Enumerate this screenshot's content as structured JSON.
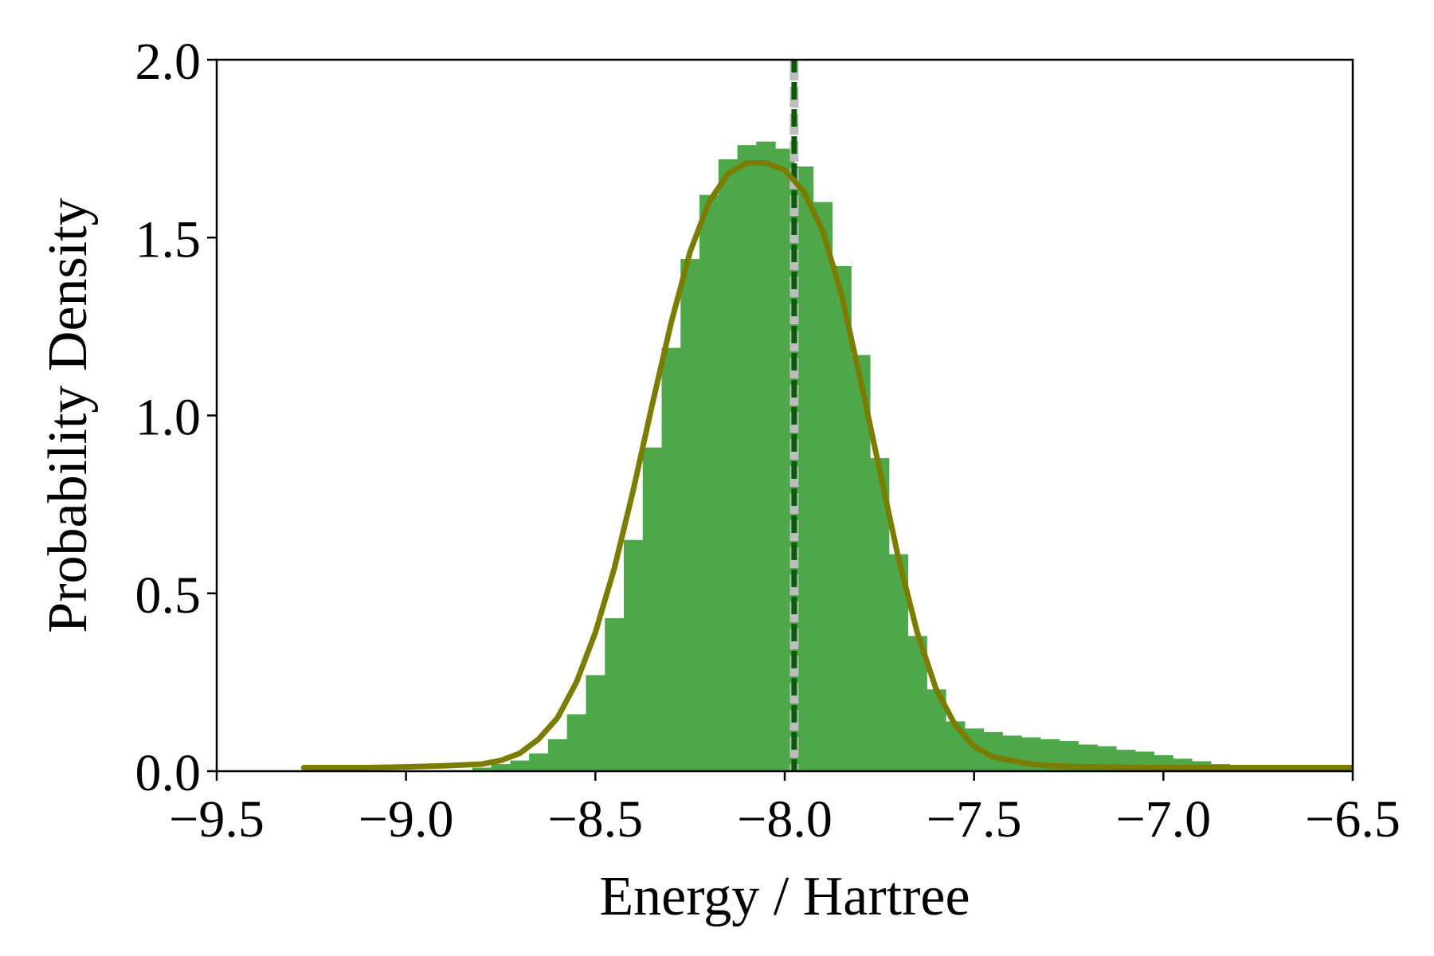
{
  "chart_data": {
    "type": "bar",
    "title": "",
    "xlabel": "Energy / Hartree",
    "ylabel": "Probability Density",
    "xlim": [
      -9.5,
      -6.5
    ],
    "ylim": [
      0.0,
      2.0
    ],
    "xticks": [
      -9.5,
      -9.0,
      -8.5,
      -8.0,
      -7.5,
      -7.0,
      -6.5
    ],
    "xtick_labels": [
      "−9.5",
      "−9.0",
      "−8.5",
      "−8.0",
      "−7.5",
      "−7.0",
      "−6.5"
    ],
    "yticks": [
      0.0,
      0.5,
      1.0,
      1.5,
      2.0
    ],
    "ytick_labels": [
      "0.0",
      "0.5",
      "1.0",
      "1.5",
      "2.0"
    ],
    "grid": false,
    "series": [
      {
        "kind": "histogram",
        "color": "#4ea84a",
        "x": [
          -8.8,
          -8.75,
          -8.7,
          -8.65,
          -8.6,
          -8.55,
          -8.5,
          -8.45,
          -8.4,
          -8.35,
          -8.3,
          -8.25,
          -8.2,
          -8.15,
          -8.1,
          -8.05,
          -8.0,
          -7.95,
          -7.9,
          -7.85,
          -7.8,
          -7.75,
          -7.7,
          -7.65,
          -7.6,
          -7.55,
          -7.5,
          -7.45,
          -7.4,
          -7.35,
          -7.3,
          -7.25,
          -7.2,
          -7.15,
          -7.1,
          -7.05,
          -7.0,
          -6.95,
          -6.9,
          -6.85,
          -6.8,
          -6.75,
          -6.7,
          -6.65,
          -6.6,
          -6.55,
          -6.5
        ],
        "values": [
          0.01,
          0.02,
          0.03,
          0.05,
          0.09,
          0.16,
          0.27,
          0.43,
          0.65,
          0.91,
          1.19,
          1.44,
          1.62,
          1.72,
          1.76,
          1.77,
          1.75,
          1.7,
          1.6,
          1.42,
          1.17,
          0.88,
          0.61,
          0.38,
          0.23,
          0.14,
          0.12,
          0.11,
          0.1,
          0.095,
          0.09,
          0.085,
          0.075,
          0.07,
          0.06,
          0.055,
          0.045,
          0.035,
          0.028,
          0.02,
          0.014,
          0.009,
          0.006,
          0.004,
          0.003,
          0.002,
          0.001
        ]
      },
      {
        "kind": "curve",
        "color": "#7a7d00",
        "x": [
          -9.27,
          -9.2,
          -9.1,
          -9.0,
          -8.9,
          -8.8,
          -8.75,
          -8.7,
          -8.65,
          -8.6,
          -8.55,
          -8.5,
          -8.45,
          -8.4,
          -8.35,
          -8.3,
          -8.25,
          -8.2,
          -8.15,
          -8.1,
          -8.05,
          -8.0,
          -7.95,
          -7.9,
          -7.85,
          -7.8,
          -7.75,
          -7.7,
          -7.65,
          -7.6,
          -7.55,
          -7.5,
          -7.45,
          -7.4,
          -7.35,
          -7.3,
          -7.2,
          -7.1,
          -7.0,
          -6.9,
          -6.8,
          -6.7,
          -6.6,
          -6.5
        ],
        "values": [
          0.01,
          0.01,
          0.01,
          0.012,
          0.015,
          0.02,
          0.03,
          0.05,
          0.09,
          0.15,
          0.25,
          0.39,
          0.57,
          0.79,
          1.03,
          1.26,
          1.46,
          1.6,
          1.68,
          1.71,
          1.71,
          1.69,
          1.63,
          1.52,
          1.34,
          1.1,
          0.85,
          0.6,
          0.39,
          0.23,
          0.13,
          0.07,
          0.04,
          0.03,
          0.02,
          0.015,
          0.012,
          0.011,
          0.01,
          0.01,
          0.01,
          0.01,
          0.01,
          0.01
        ]
      }
    ],
    "vlines": [
      {
        "x": -7.975,
        "color": "#bdbdbd",
        "style": "dashed"
      },
      {
        "x": -7.975,
        "color": "#0a5c0a",
        "style": "dashed"
      }
    ]
  }
}
